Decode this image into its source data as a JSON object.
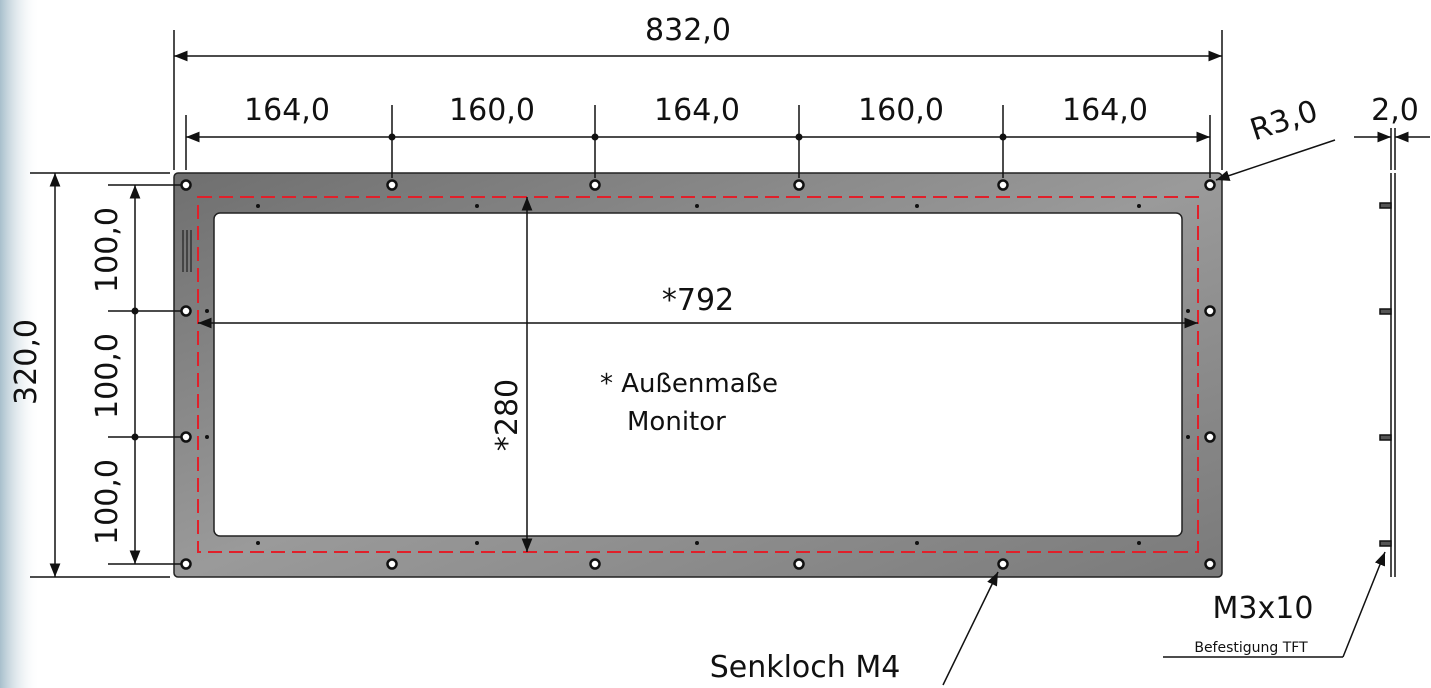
{
  "dimensions": {
    "total_width": "832,0",
    "segments": [
      "164,0",
      "160,0",
      "164,0",
      "160,0",
      "164,0"
    ],
    "total_height": "320,0",
    "vertical_segments": [
      "100,0",
      "100,0",
      "100,0"
    ],
    "corner_radius": "R3,0",
    "thickness": "2,0",
    "inner_width": "*792",
    "inner_height": "*280"
  },
  "notes": {
    "star_note_line1": "* Außenmaße",
    "star_note_line2": "Monitor",
    "screw": "M3x10",
    "screw_sub": "Befestigung TFT",
    "countersink": "Senkloch M4"
  },
  "colors": {
    "plate": "#8a8a8a",
    "dashed_outline": "#e0202a",
    "line": "#111111",
    "background_edge": "#bcd0dc"
  }
}
